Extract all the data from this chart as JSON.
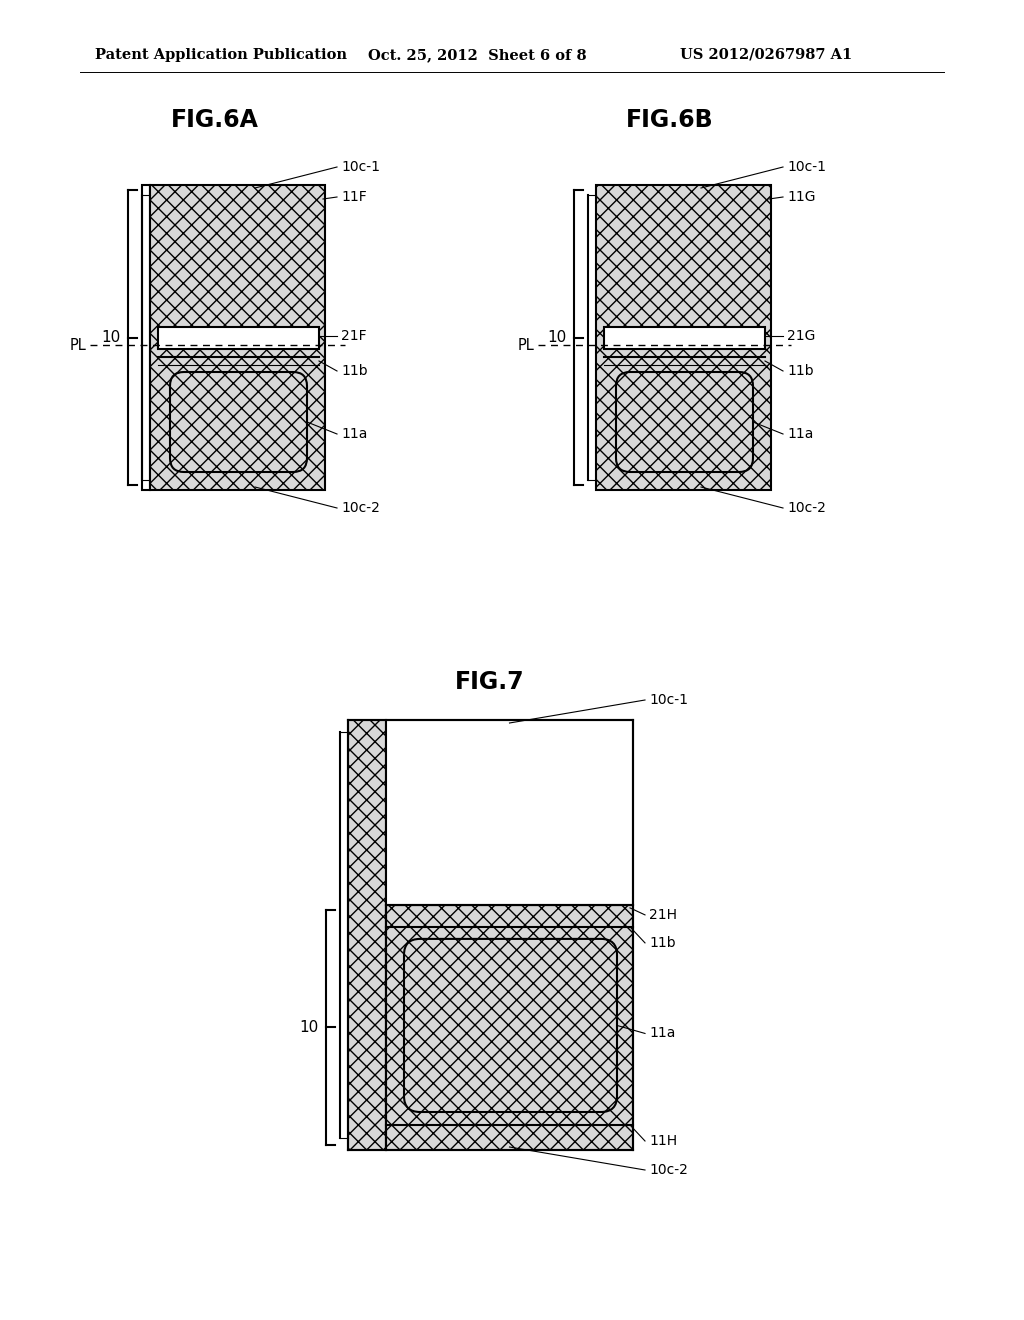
{
  "bg_color": "#ffffff",
  "header_text": "Patent Application Publication",
  "header_date": "Oct. 25, 2012  Sheet 6 of 8",
  "header_num": "US 2012/0267987 A1",
  "fig6a_title": "FIG.6A",
  "fig6b_title": "FIG.6B",
  "fig7_title": "FIG.7",
  "line_color": "#000000",
  "hatch_face": "#d8d8d8"
}
